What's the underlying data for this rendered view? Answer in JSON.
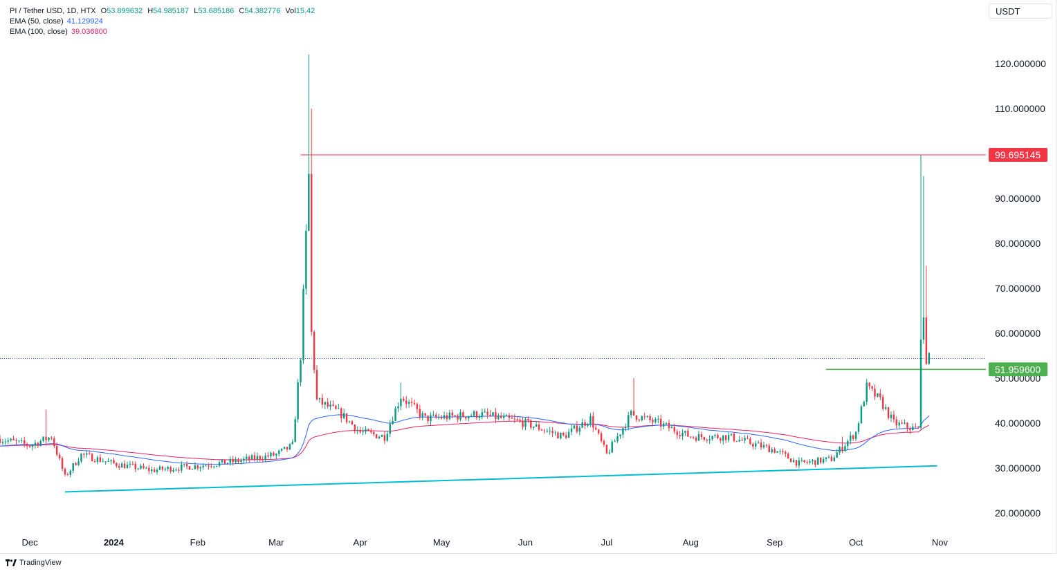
{
  "header": {
    "symbol": "PI / Tether USD, 1D, HTX",
    "open_label": "O",
    "open": "53.899632",
    "high_label": "H",
    "high": "54.985187",
    "low_label": "L",
    "low": "53.685186",
    "close_label": "C",
    "close": "54.382776",
    "vol_label": "Vol",
    "vol": "15.42",
    "ema50_label": "EMA (50, close)",
    "ema50_value": "41.129924",
    "ema100_label": "EMA (100, close)",
    "ema100_value": "39.036800"
  },
  "currency": "USDT",
  "brand": "TradingView",
  "colors": {
    "up": "#089981",
    "down": "#f23645",
    "ema50": "#2962ff",
    "ema100": "#e91e63",
    "support": "#00bcd4",
    "resistance": "#f23645",
    "breakout": "#4caf50",
    "price_line": "#2962ff"
  },
  "chart_data": {
    "type": "candlestick",
    "ylim": [
      15,
      125
    ],
    "x_range": [
      "2023-11-20",
      "2024-11-18"
    ],
    "y_ticks": [
      "120.000000",
      "110.000000",
      "90.000000",
      "80.000000",
      "70.000000",
      "60.000000",
      "50.000000",
      "40.000000",
      "30.000000",
      "20.000000"
    ],
    "x_ticks": [
      {
        "label": "Dec",
        "date": "2023-12-01"
      },
      {
        "label": "2024",
        "date": "2024-01-01",
        "bold": true
      },
      {
        "label": "Feb",
        "date": "2024-02-01"
      },
      {
        "label": "Mar",
        "date": "2024-03-01"
      },
      {
        "label": "Apr",
        "date": "2024-04-01"
      },
      {
        "label": "May",
        "date": "2024-05-01"
      },
      {
        "label": "Jun",
        "date": "2024-06-01"
      },
      {
        "label": "Jul",
        "date": "2024-07-01"
      },
      {
        "label": "Aug",
        "date": "2024-08-01"
      },
      {
        "label": "Sep",
        "date": "2024-09-01"
      },
      {
        "label": "Oct",
        "date": "2024-10-01"
      },
      {
        "label": "Nov",
        "date": "2024-11-01"
      }
    ],
    "price_tags": [
      {
        "label": "99.695145",
        "value": 99.695145,
        "color": "#f23645"
      },
      {
        "label": "51.959600",
        "value": 51.9596,
        "color": "#4caf50"
      }
    ],
    "last_price": 54.382776,
    "annotations": [
      {
        "kind": "horizontal",
        "value": 99.695145,
        "from": "2024-03-10",
        "color": "#f23645"
      },
      {
        "kind": "horizontal",
        "value": 51.9596,
        "from": "2024-09-20",
        "color": "#4caf50"
      },
      {
        "kind": "trendline",
        "from": [
          "2023-12-14",
          24.7
        ],
        "to": [
          "2024-10-31",
          30.5
        ],
        "color": "#00bcd4"
      }
    ],
    "key_points": [
      [
        "2023-11-20",
        36.5
      ],
      [
        "2023-12-01",
        35.0
      ],
      [
        "2023-12-09",
        37.0
      ],
      [
        "2023-12-14",
        28.0
      ],
      [
        "2023-12-20",
        33.0
      ],
      [
        "2024-01-01",
        31.0
      ],
      [
        "2024-01-15",
        29.5
      ],
      [
        "2024-02-01",
        30.5
      ],
      [
        "2024-02-15",
        31.5
      ],
      [
        "2024-03-01",
        33.0
      ],
      [
        "2024-03-07",
        35.0
      ],
      [
        "2024-03-10",
        55.0
      ],
      [
        "2024-03-13",
        95.0
      ],
      [
        "2024-03-14",
        60.0
      ],
      [
        "2024-03-16",
        45.0
      ],
      [
        "2024-03-25",
        42.0
      ],
      [
        "2024-04-01",
        38.0
      ],
      [
        "2024-04-10",
        37.0
      ],
      [
        "2024-04-16",
        46.0
      ],
      [
        "2024-04-25",
        41.0
      ],
      [
        "2024-05-15",
        42.0
      ],
      [
        "2024-06-01",
        40.0
      ],
      [
        "2024-06-15",
        37.0
      ],
      [
        "2024-06-25",
        41.0
      ],
      [
        "2024-07-01",
        33.0
      ],
      [
        "2024-07-05",
        37.0
      ],
      [
        "2024-07-10",
        42.0
      ],
      [
        "2024-07-20",
        40.0
      ],
      [
        "2024-08-01",
        37.0
      ],
      [
        "2024-08-15",
        37.0
      ],
      [
        "2024-09-01",
        34.0
      ],
      [
        "2024-09-10",
        31.0
      ],
      [
        "2024-09-22",
        32.0
      ],
      [
        "2024-10-01",
        38.0
      ],
      [
        "2024-10-05",
        48.0
      ],
      [
        "2024-10-10",
        45.0
      ],
      [
        "2024-10-15",
        40.0
      ],
      [
        "2024-10-24",
        38.5
      ],
      [
        "2024-10-25",
        60.0
      ],
      [
        "2024-10-26",
        62.0
      ],
      [
        "2024-10-27",
        54.5
      ],
      [
        "2024-10-28",
        54.38
      ]
    ],
    "wick_spikes": [
      {
        "date": "2024-03-13",
        "high": 122.0
      },
      {
        "date": "2024-03-14",
        "high": 110.0
      },
      {
        "date": "2024-10-25",
        "high": 99.7
      },
      {
        "date": "2024-10-26",
        "high": 95.0
      },
      {
        "date": "2024-10-27",
        "high": 75.0
      },
      {
        "date": "2023-12-07",
        "high": 43.0
      },
      {
        "date": "2024-07-11",
        "high": 50.0
      },
      {
        "date": "2024-04-16",
        "high": 49.0
      },
      {
        "date": "2024-09-26",
        "high": 37.0
      }
    ]
  }
}
